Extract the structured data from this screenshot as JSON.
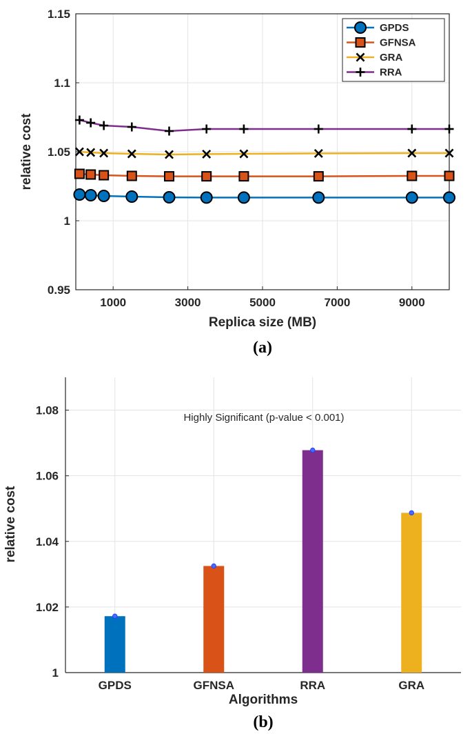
{
  "chart_data": [
    {
      "type": "line",
      "panel_label": "(a)",
      "xlabel": "Replica size (MB)",
      "ylabel": "relative cost",
      "xlim": [
        0,
        10000
      ],
      "ylim": [
        0.95,
        1.15
      ],
      "xticks": [
        1000,
        3000,
        5000,
        7000,
        9000
      ],
      "yticks": [
        0.95,
        1,
        1.05,
        1.1,
        1.15
      ],
      "ytick_labels": [
        "0.95",
        "1",
        "1.05",
        "1.1",
        "1.15"
      ],
      "grid": true,
      "legend_position": "top-right",
      "x": [
        100,
        400,
        750,
        1500,
        2500,
        3500,
        4500,
        6500,
        9000,
        10000
      ],
      "series": [
        {
          "name": "GPDS",
          "marker": "circle",
          "color": "#0072BD",
          "values": [
            1.019,
            1.0185,
            1.018,
            1.0175,
            1.017,
            1.0168,
            1.0168,
            1.0168,
            1.0168,
            1.0168
          ]
        },
        {
          "name": "GFNSA",
          "marker": "square",
          "color": "#D95319",
          "values": [
            1.034,
            1.0335,
            1.033,
            1.0325,
            1.0322,
            1.0322,
            1.0322,
            1.0322,
            1.0325,
            1.0325
          ]
        },
        {
          "name": "GRA",
          "marker": "x",
          "color": "#EDB120",
          "values": [
            1.05,
            1.0495,
            1.049,
            1.0485,
            1.048,
            1.0483,
            1.0485,
            1.0488,
            1.049,
            1.049
          ]
        },
        {
          "name": "RRA",
          "marker": "plus",
          "color": "#7E2F8E",
          "values": [
            1.073,
            1.071,
            1.069,
            1.068,
            1.065,
            1.0665,
            1.0665,
            1.0665,
            1.0665,
            1.0665
          ]
        }
      ]
    },
    {
      "type": "bar",
      "panel_label": "(b)",
      "xlabel": "Algorithms",
      "ylabel": "relative cost",
      "annotation": "Highly Significant (p-value < 0.001)",
      "categories": [
        "GPDS",
        "GFNSA",
        "RRA",
        "GRA"
      ],
      "values": [
        1.0172,
        1.0325,
        1.0678,
        1.0487
      ],
      "colors": [
        "#0072BD",
        "#D95319",
        "#7E2F8E",
        "#EDB120"
      ],
      "ylim": [
        1,
        1.09
      ],
      "yticks": [
        1,
        1.02,
        1.04,
        1.06,
        1.08
      ],
      "ytick_labels": [
        "1",
        "1.02",
        "1.04",
        "1.06",
        "1.08"
      ],
      "grid": true
    }
  ]
}
